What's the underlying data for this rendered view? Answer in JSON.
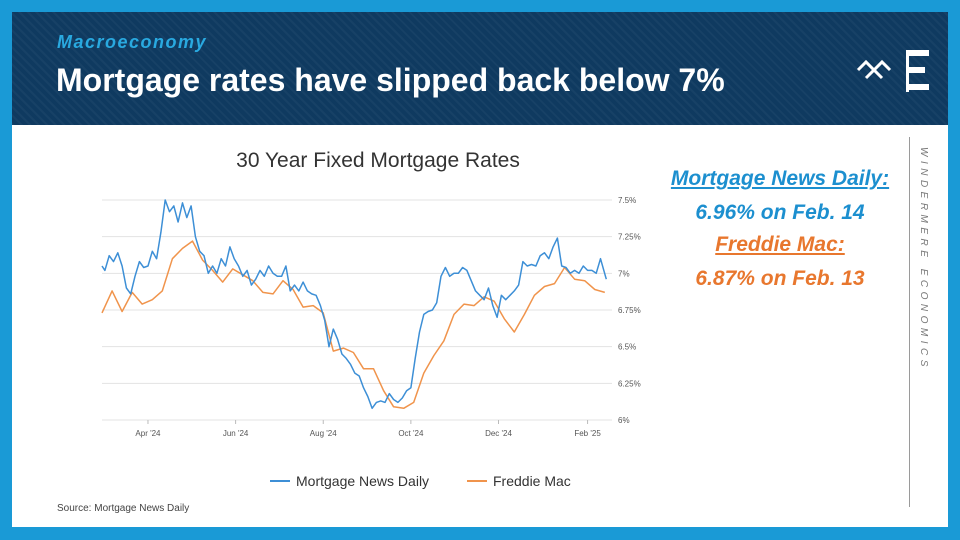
{
  "header": {
    "kicker": "Macroeconomy",
    "title": "Mortgage rates have slipped back below 7%"
  },
  "callout": {
    "mnd_label": "Mortgage News Daily:",
    "mnd_value": "6.96% on Feb. 14",
    "fm_label": "Freddie Mac:",
    "fm_value": "6.87% on Feb. 13"
  },
  "brand_text": "WINDERMERE ECONOMICS",
  "source": "Source: Mortgage News Daily",
  "colors": {
    "mnd": "#3d8fd6",
    "freddie": "#f0944c",
    "header_bg": "#0f3a60",
    "frame": "#1a9ad6"
  },
  "chart_data": {
    "type": "line",
    "title": "30 Year Fixed Mortgage Rates",
    "xlabel": "",
    "ylabel": "",
    "ylim": [
      6.0,
      7.5
    ],
    "xlim": [
      "2024-02-29",
      "2025-02-18"
    ],
    "y_ticks": [
      6.0,
      6.25,
      6.5,
      6.75,
      7.0,
      7.25,
      7.5
    ],
    "y_tick_labels": [
      "6%",
      "6.25%",
      "6.5%",
      "6.75%",
      "7%",
      "7.25%",
      "7.5%"
    ],
    "x_ticks": [
      "2024-04-01",
      "2024-06-01",
      "2024-08-01",
      "2024-10-01",
      "2024-12-01",
      "2025-02-01"
    ],
    "x_tick_labels": [
      "Apr '24",
      "Jun '24",
      "Aug '24",
      "Oct '24",
      "Dec '24",
      "Feb '25"
    ],
    "grid": true,
    "legend_position": "bottom",
    "series": [
      {
        "name": "Mortgage News Daily",
        "x": [
          "2024-02-29",
          "2024-03-02",
          "2024-03-05",
          "2024-03-08",
          "2024-03-11",
          "2024-03-14",
          "2024-03-17",
          "2024-03-20",
          "2024-03-23",
          "2024-03-26",
          "2024-03-29",
          "2024-04-01",
          "2024-04-04",
          "2024-04-07",
          "2024-04-10",
          "2024-04-13",
          "2024-04-16",
          "2024-04-19",
          "2024-04-22",
          "2024-04-25",
          "2024-04-28",
          "2024-05-01",
          "2024-05-04",
          "2024-05-07",
          "2024-05-10",
          "2024-05-13",
          "2024-05-16",
          "2024-05-19",
          "2024-05-22",
          "2024-05-25",
          "2024-05-28",
          "2024-05-31",
          "2024-06-03",
          "2024-06-06",
          "2024-06-09",
          "2024-06-12",
          "2024-06-15",
          "2024-06-18",
          "2024-06-21",
          "2024-06-24",
          "2024-06-27",
          "2024-06-30",
          "2024-07-03",
          "2024-07-06",
          "2024-07-09",
          "2024-07-12",
          "2024-07-15",
          "2024-07-18",
          "2024-07-21",
          "2024-07-24",
          "2024-07-27",
          "2024-07-30",
          "2024-08-02",
          "2024-08-05",
          "2024-08-08",
          "2024-08-11",
          "2024-08-14",
          "2024-08-17",
          "2024-08-20",
          "2024-08-23",
          "2024-08-26",
          "2024-08-29",
          "2024-09-01",
          "2024-09-04",
          "2024-09-07",
          "2024-09-10",
          "2024-09-13",
          "2024-09-16",
          "2024-09-19",
          "2024-09-22",
          "2024-09-25",
          "2024-09-28",
          "2024-10-01",
          "2024-10-04",
          "2024-10-07",
          "2024-10-10",
          "2024-10-13",
          "2024-10-16",
          "2024-10-19",
          "2024-10-22",
          "2024-10-25",
          "2024-10-28",
          "2024-10-31",
          "2024-11-03",
          "2024-11-06",
          "2024-11-09",
          "2024-11-12",
          "2024-11-15",
          "2024-11-18",
          "2024-11-21",
          "2024-11-24",
          "2024-11-27",
          "2024-11-30",
          "2024-12-03",
          "2024-12-06",
          "2024-12-09",
          "2024-12-12",
          "2024-12-15",
          "2024-12-18",
          "2024-12-21",
          "2024-12-24",
          "2024-12-27",
          "2024-12-30",
          "2025-01-02",
          "2025-01-05",
          "2025-01-08",
          "2025-01-11",
          "2025-01-14",
          "2025-01-17",
          "2025-01-20",
          "2025-01-23",
          "2025-01-26",
          "2025-01-29",
          "2025-02-01",
          "2025-02-04",
          "2025-02-07",
          "2025-02-10",
          "2025-02-14"
        ],
        "y": [
          7.05,
          7.02,
          7.12,
          7.08,
          7.14,
          7.05,
          6.9,
          6.86,
          6.98,
          7.08,
          7.04,
          7.05,
          7.15,
          7.1,
          7.28,
          7.5,
          7.42,
          7.46,
          7.35,
          7.48,
          7.38,
          7.46,
          7.25,
          7.15,
          7.12,
          7.0,
          7.05,
          7.0,
          7.1,
          7.05,
          7.18,
          7.1,
          7.05,
          6.98,
          7.02,
          6.92,
          6.96,
          7.02,
          6.98,
          7.05,
          7.0,
          6.98,
          6.98,
          7.05,
          6.88,
          6.92,
          6.88,
          6.94,
          6.88,
          6.86,
          6.85,
          6.78,
          6.68,
          6.5,
          6.62,
          6.55,
          6.45,
          6.42,
          6.38,
          6.32,
          6.3,
          6.22,
          6.16,
          6.08,
          6.12,
          6.13,
          6.12,
          6.18,
          6.14,
          6.12,
          6.15,
          6.2,
          6.22,
          6.42,
          6.6,
          6.72,
          6.74,
          6.75,
          6.8,
          6.98,
          7.04,
          6.98,
          7.0,
          7.0,
          7.04,
          7.02,
          6.95,
          6.88,
          6.85,
          6.82,
          6.9,
          6.78,
          6.7,
          6.85,
          6.82,
          6.85,
          6.88,
          6.92,
          7.08,
          7.05,
          7.06,
          7.05,
          7.12,
          7.14,
          7.1,
          7.18,
          7.24,
          7.05,
          7.04,
          7.0,
          7.02,
          7.0,
          7.05,
          7.02,
          7.02,
          7.0,
          7.1,
          6.96
        ]
      },
      {
        "name": "Freddie Mac",
        "x": [
          "2024-02-29",
          "2024-03-07",
          "2024-03-14",
          "2024-03-21",
          "2024-03-28",
          "2024-04-04",
          "2024-04-11",
          "2024-04-18",
          "2024-04-25",
          "2024-05-02",
          "2024-05-09",
          "2024-05-16",
          "2024-05-23",
          "2024-05-30",
          "2024-06-06",
          "2024-06-13",
          "2024-06-20",
          "2024-06-27",
          "2024-07-04",
          "2024-07-11",
          "2024-07-18",
          "2024-07-25",
          "2024-08-01",
          "2024-08-08",
          "2024-08-15",
          "2024-08-22",
          "2024-08-29",
          "2024-09-05",
          "2024-09-12",
          "2024-09-19",
          "2024-09-26",
          "2024-10-03",
          "2024-10-10",
          "2024-10-17",
          "2024-10-24",
          "2024-10-31",
          "2024-11-07",
          "2024-11-14",
          "2024-11-21",
          "2024-11-28",
          "2024-12-05",
          "2024-12-12",
          "2024-12-19",
          "2024-12-26",
          "2025-01-02",
          "2025-01-09",
          "2025-01-16",
          "2025-01-23",
          "2025-01-30",
          "2025-02-06",
          "2025-02-13"
        ],
        "y": [
          6.73,
          6.88,
          6.74,
          6.87,
          6.79,
          6.82,
          6.88,
          7.1,
          7.17,
          7.22,
          7.09,
          7.02,
          6.94,
          7.03,
          6.99,
          6.95,
          6.87,
          6.86,
          6.95,
          6.89,
          6.77,
          6.78,
          6.73,
          6.47,
          6.49,
          6.46,
          6.35,
          6.35,
          6.2,
          6.09,
          6.08,
          6.12,
          6.32,
          6.44,
          6.54,
          6.72,
          6.79,
          6.78,
          6.84,
          6.81,
          6.69,
          6.6,
          6.72,
          6.85,
          6.91,
          6.93,
          7.04,
          6.96,
          6.95,
          6.89,
          6.87
        ]
      }
    ]
  }
}
